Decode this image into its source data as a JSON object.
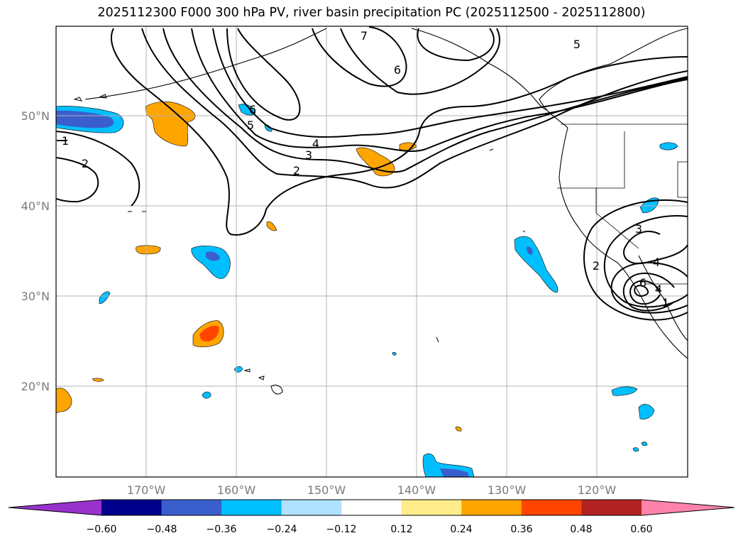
{
  "title": "2025112300 F000 300 hPa PV, river basin precipitation PC (2025112500 - 2025112800)",
  "lat_labels": [
    "50°N",
    "40°N",
    "30°N",
    "20°N"
  ],
  "lon_labels": [
    "170°W",
    "160°W",
    "150°W",
    "140°W",
    "130°W",
    "120°W"
  ],
  "contour_labels": [
    "1",
    "2",
    "2",
    "3",
    "4",
    "5",
    "6",
    "6",
    "7",
    "5",
    "3",
    "4",
    "2",
    "6",
    "4",
    "1"
  ],
  "colorbar": {
    "ticks": [
      "−0.60",
      "−0.48",
      "−0.36",
      "−0.24",
      "−0.12",
      "0.12",
      "0.24",
      "0.36",
      "0.48",
      "0.60"
    ],
    "colors": [
      "#9932cc",
      "#00008b",
      "#3a5fcd",
      "#00bfff",
      "#b0e2ff",
      "#ffffff",
      "#ffec8b",
      "#ffa500",
      "#ff4500",
      "#b22222",
      "#ff82ab"
    ]
  }
}
